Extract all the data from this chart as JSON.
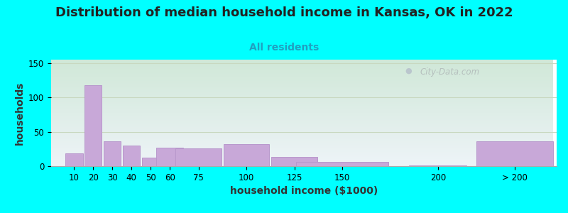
{
  "title": "Distribution of median household income in Kansas, OK in 2022",
  "subtitle": "All residents",
  "xlabel": "household income ($1000)",
  "ylabel": "households",
  "background_color": "#00FFFF",
  "bar_color": "#c8a8d8",
  "bar_edge_color": "#b898cc",
  "watermark": "City-Data.com",
  "categories": [
    "10",
    "20",
    "30",
    "40",
    "50",
    "60",
    "75",
    "100",
    "125",
    "150",
    "200",
    "> 200"
  ],
  "values": [
    19,
    118,
    36,
    30,
    12,
    27,
    26,
    32,
    13,
    6,
    1,
    36
  ],
  "ylim": [
    0,
    155
  ],
  "yticks": [
    0,
    50,
    100,
    150
  ],
  "title_fontsize": 13,
  "subtitle_fontsize": 10,
  "axis_label_fontsize": 10,
  "title_color": "#222222",
  "subtitle_color": "#20a0c0",
  "plot_bg_top_color": "#d0e8d8",
  "plot_bg_bottom_color": "#eef4f8",
  "grid_color": "#c8d8c0",
  "tick_label_fontsize": 8.5
}
